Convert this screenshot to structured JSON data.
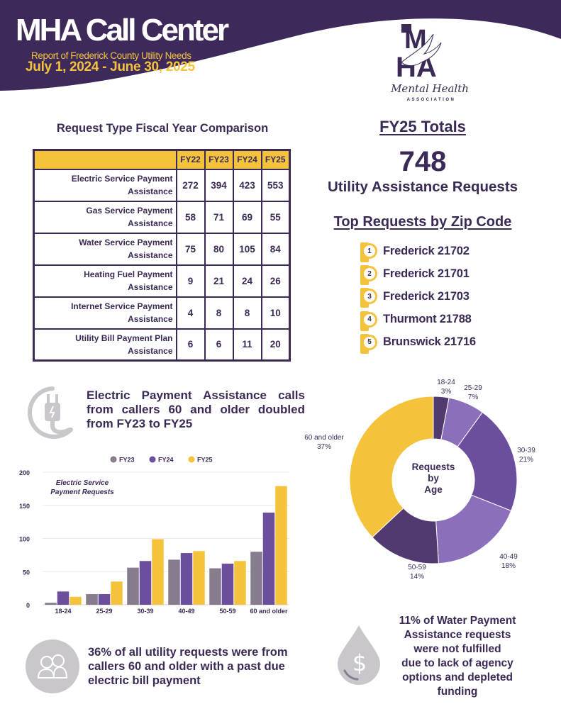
{
  "header": {
    "title": "MHA Call Center",
    "subtitle": "Report of Frederick County Utility Needs",
    "date_range": "July 1, 2024 - June 30, 2025"
  },
  "logo": {
    "letters": "MHA",
    "script_text": "Mental Health",
    "sub_text": "ASSOCIATION"
  },
  "colors": {
    "purple_dark": "#3b2a56",
    "purple_header": "#3d2a5b",
    "purple_mid": "#6b4f9e",
    "purple_light": "#8c6fbb",
    "purple_deep": "#503a70",
    "gold": "#f5c33b",
    "gray": "#877c8e",
    "icon_gray": "#c9c6cc"
  },
  "comparison_table": {
    "title": "Request Type Fiscal Year Comparison",
    "columns": [
      "FY22",
      "FY23",
      "FY24",
      "FY25"
    ],
    "rows": [
      {
        "line1": "Electric Service Payment",
        "line2": "Assistance",
        "values": [
          "272",
          "394",
          "423",
          "553"
        ]
      },
      {
        "line1": "Gas Service Payment",
        "line2": "Assistance",
        "values": [
          "58",
          "71",
          "69",
          "55"
        ]
      },
      {
        "line1": "Water Service Payment",
        "line2": "Assistance",
        "values": [
          "75",
          "80",
          "105",
          "84"
        ]
      },
      {
        "line1": "Heating Fuel Payment",
        "line2": "Assistance",
        "values": [
          "9",
          "21",
          "24",
          "26"
        ]
      },
      {
        "line1": "Internet Service Payment",
        "line2": "Assistance",
        "values": [
          "4",
          "8",
          "8",
          "10"
        ]
      },
      {
        "line1": "Utility Bill Payment Plan",
        "line2": "Assistance",
        "values": [
          "6",
          "6",
          "11",
          "20"
        ]
      }
    ]
  },
  "totals": {
    "title": "FY25 Totals",
    "number": "748",
    "label": "Utility Assistance Requests"
  },
  "zip_codes": {
    "title": "Top Requests by Zip Code",
    "items": [
      {
        "rank": "1",
        "label": "Frederick 21702"
      },
      {
        "rank": "2",
        "label": "Frederick 21701"
      },
      {
        "rank": "3",
        "label": "Frederick 21703"
      },
      {
        "rank": "4",
        "label": "Thurmont 21788"
      },
      {
        "rank": "5",
        "label": "Brunswick 21716"
      }
    ]
  },
  "callouts": {
    "electric": "Electric Payment Assistance calls from callers 60 and older doubled from FY23 to FY25",
    "senior": "36% of all utility requests were from callers 60 and older with a past due electric bill payment",
    "water_lines": [
      "11% of Water Payment",
      "Assistance requests",
      "were not fulfilled",
      "due to lack of agency",
      "options and depleted",
      "funding"
    ]
  },
  "chart_data": [
    {
      "type": "bar",
      "title": "Electric Service Payment Requests",
      "title_lines": [
        "Electric Service",
        "Payment Requests"
      ],
      "xlabel": "",
      "ylabel": "",
      "categories": [
        "18-24",
        "25-29",
        "30-39",
        "40-49",
        "50-59",
        "60 and older"
      ],
      "series": [
        {
          "name": "FY23",
          "color": "#877c8e",
          "values": [
            3,
            16,
            56,
            68,
            55,
            80
          ]
        },
        {
          "name": "FY24",
          "color": "#6b4f9e",
          "values": [
            20,
            16,
            66,
            78,
            62,
            139
          ]
        },
        {
          "name": "FY25",
          "color": "#f5c33b",
          "values": [
            12,
            35,
            99,
            81,
            66,
            179
          ]
        }
      ],
      "ylim": [
        0,
        200
      ],
      "yticks": [
        0,
        50,
        100,
        150,
        200
      ],
      "grid": true,
      "legend": "top-center"
    },
    {
      "type": "pie",
      "style": "donut",
      "title": "Requests by Age",
      "title_lines": [
        "Requests",
        "by",
        "Age"
      ],
      "slices": [
        {
          "label": "18-24",
          "value": 3,
          "pct_label": "3%",
          "color": "#503a70"
        },
        {
          "label": "25-29",
          "value": 7,
          "pct_label": "7%",
          "color": "#8c6fbb"
        },
        {
          "label": "30-39",
          "value": 21,
          "pct_label": "21%",
          "color": "#6b4f9e"
        },
        {
          "label": "40-49",
          "value": 18,
          "pct_label": "18%",
          "color": "#8c6fbb"
        },
        {
          "label": "50-59",
          "value": 14,
          "pct_label": "14%",
          "color": "#503a70"
        },
        {
          "label": "60 and older",
          "value": 37,
          "pct_label": "37%",
          "color": "#f5c33b"
        }
      ]
    }
  ]
}
